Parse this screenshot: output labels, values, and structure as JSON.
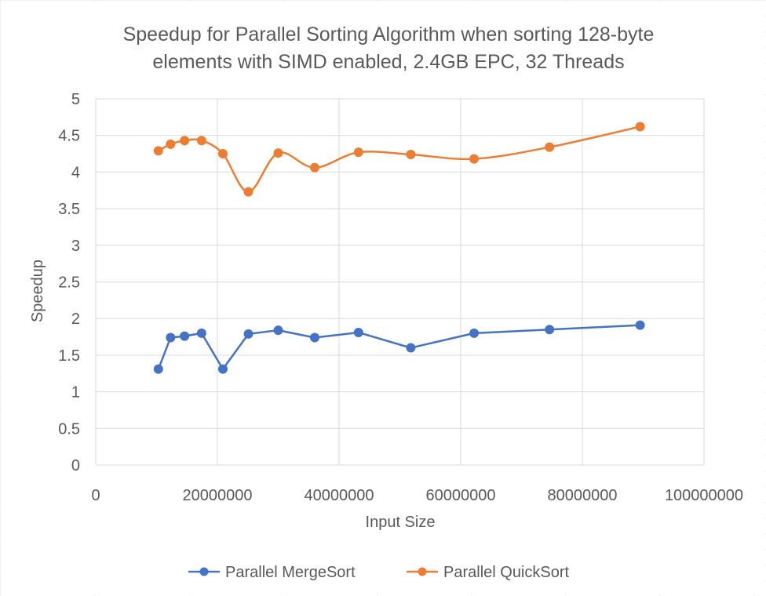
{
  "chart_data": {
    "type": "scatter",
    "title_lines": [
      "Speedup for Parallel Sorting Algorithm when sorting 128-byte",
      "elements with SIMD enabled, 2.4GB EPC, 32 Threads"
    ],
    "xlabel": "Input Size",
    "ylabel": "Speedup",
    "xlim": [
      0,
      100000000
    ],
    "ylim": [
      0,
      5
    ],
    "x_ticks": [
      "0",
      "20000000",
      "40000000",
      "60000000",
      "80000000",
      "100000000"
    ],
    "y_ticks": [
      "0",
      "0.5",
      "1",
      "1.5",
      "2",
      "2.5",
      "3",
      "3.5",
      "4",
      "4.5",
      "5"
    ],
    "grid": true,
    "legend_position": "bottom",
    "series": [
      {
        "name": "Parallel MergeSort",
        "color": "#4472c4",
        "line": "straight",
        "marker": "circle",
        "x": [
          10300000,
          12300000,
          14600000,
          17400000,
          20900000,
          25100000,
          30000000,
          36000000,
          43200000,
          51800000,
          62200000,
          74600000,
          89500000
        ],
        "y": [
          1.31,
          1.74,
          1.76,
          1.8,
          1.31,
          1.79,
          1.84,
          1.74,
          1.81,
          1.6,
          1.8,
          1.85,
          1.91
        ]
      },
      {
        "name": "Parallel QuickSort",
        "color": "#ed7d31",
        "line": "smooth",
        "marker": "circle",
        "x": [
          10300000,
          12300000,
          14600000,
          17400000,
          20900000,
          25100000,
          30000000,
          36000000,
          43200000,
          51800000,
          62200000,
          74600000,
          89500000
        ],
        "y": [
          4.29,
          4.38,
          4.43,
          4.43,
          4.25,
          3.73,
          4.26,
          4.06,
          4.27,
          4.24,
          4.18,
          4.34,
          4.62
        ]
      }
    ]
  }
}
